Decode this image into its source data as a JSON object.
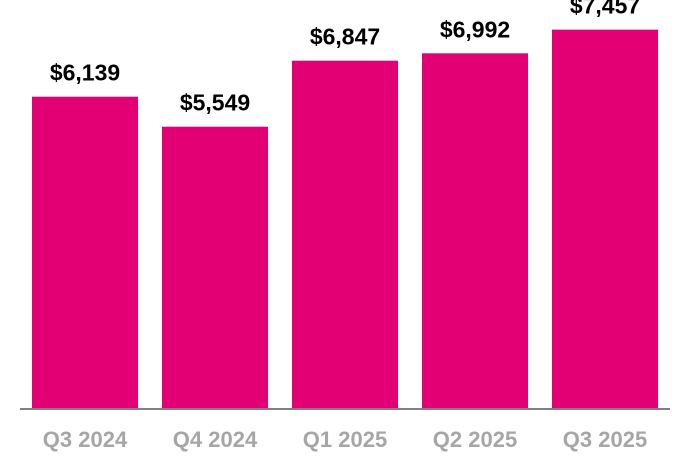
{
  "chart_data": {
    "type": "bar",
    "categories": [
      "Q3 2024",
      "Q4 2024",
      "Q1 2025",
      "Q2 2025",
      "Q3 2025"
    ],
    "values": [
      6139,
      5549,
      6847,
      6992,
      7457
    ],
    "data_labels": [
      "$6,139",
      "$5,549",
      "$6,847",
      "$6,992",
      "$7,457"
    ],
    "title": "",
    "xlabel": "",
    "ylabel": "",
    "ylim": [
      0,
      8040
    ],
    "grid": false,
    "legend": "none",
    "colors": {
      "bar": "#E20074",
      "axis": "#808080",
      "value_label": "#000000",
      "tick_label": "#A6A6A6"
    }
  }
}
